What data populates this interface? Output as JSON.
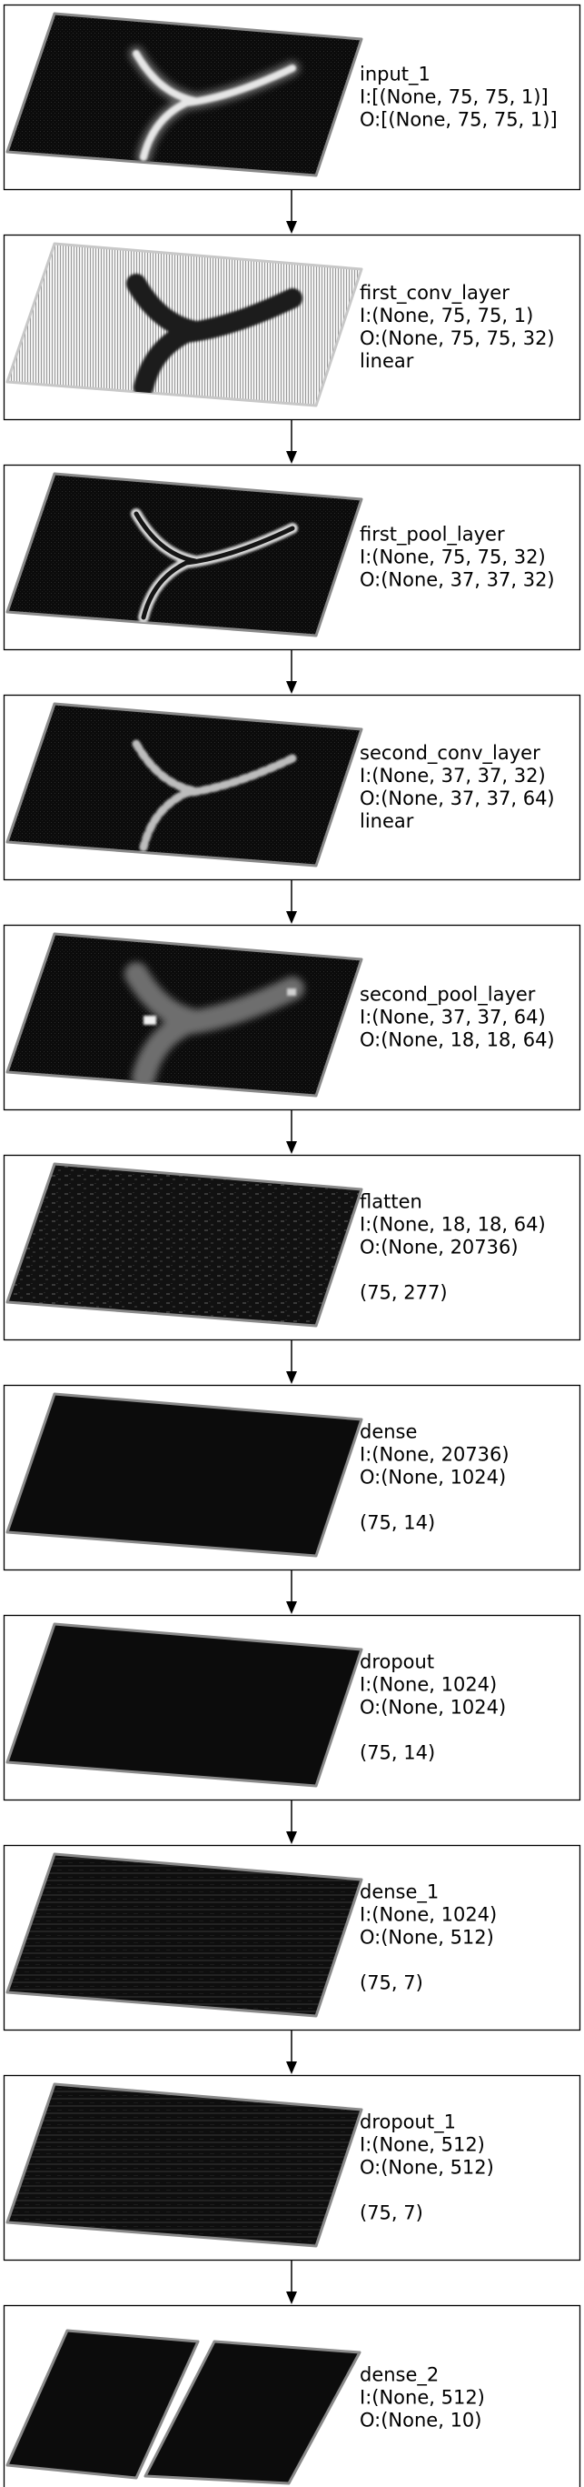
{
  "layers": [
    {
      "name": "input_1",
      "lines": [
        "I:[(None, 75, 75, 1)]",
        "O:[(None, 75, 75, 1)]"
      ],
      "visual": "digit-bright"
    },
    {
      "name": "first_conv_layer",
      "lines": [
        "I:(None, 75, 75, 1)",
        "O:(None, 75, 75, 32)",
        "linear"
      ],
      "visual": "digit-inverted"
    },
    {
      "name": "first_pool_layer",
      "lines": [
        "I:(None, 75, 75, 32)",
        "O:(None, 37, 37, 32)"
      ],
      "visual": "digit-edges"
    },
    {
      "name": "second_conv_layer",
      "lines": [
        "I:(None, 37, 37, 32)",
        "O:(None, 37, 37, 64)",
        "linear"
      ],
      "visual": "digit-sparse"
    },
    {
      "name": "second_pool_layer",
      "lines": [
        "I:(None, 37, 37, 64)",
        "O:(None, 18, 18, 64)"
      ],
      "visual": "digit-blurred"
    },
    {
      "name": "flatten",
      "lines": [
        "I:(None, 18, 18, 64)",
        "O:(None, 20736)",
        "",
        "(75, 277)"
      ],
      "visual": "noise-faint"
    },
    {
      "name": "dense",
      "lines": [
        "I:(None, 20736)",
        "O:(None, 1024)",
        "",
        "(75, 14)"
      ],
      "visual": "dark"
    },
    {
      "name": "dropout",
      "lines": [
        "I:(None, 1024)",
        "O:(None, 1024)",
        "",
        "(75, 14)"
      ],
      "visual": "dark"
    },
    {
      "name": "dense_1",
      "lines": [
        "I:(None, 1024)",
        "O:(None, 512)",
        "",
        "(75, 7)"
      ],
      "visual": "stripes"
    },
    {
      "name": "dropout_1",
      "lines": [
        "I:(None, 512)",
        "O:(None, 512)",
        "",
        "(75, 7)"
      ],
      "visual": "stripes"
    },
    {
      "name": "dense_2",
      "lines": [
        "I:(None, 512)",
        "O:(None, 10)"
      ],
      "visual": "two-tiles"
    }
  ],
  "colors": {
    "frame": "#000000",
    "tile_fill": "#0c0c0c",
    "tile_edge": "#8a8a8a",
    "bright_stroke": "#e6e6e6",
    "inverted_fill": "#dcdcdc",
    "inverted_stroke": "#3a3a3a"
  }
}
